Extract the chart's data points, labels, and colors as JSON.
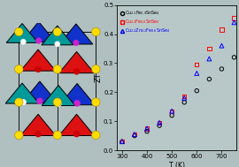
{
  "bg_color": "#b0bfbf",
  "plot_bg_color": "#b8c8c8",
  "series": [
    {
      "color": "black",
      "marker": "o",
      "T": [
        300,
        350,
        400,
        450,
        500,
        550,
        600,
        650,
        700,
        750
      ],
      "ZT": [
        0.03,
        0.05,
        0.065,
        0.085,
        0.12,
        0.165,
        0.205,
        0.245,
        0.28,
        0.32
      ]
    },
    {
      "color": "red",
      "marker": "s",
      "T": [
        300,
        350,
        400,
        450,
        500,
        550,
        600,
        650,
        700,
        750
      ],
      "ZT": [
        0.03,
        0.055,
        0.075,
        0.095,
        0.135,
        0.185,
        0.295,
        0.35,
        0.415,
        0.455
      ]
    },
    {
      "color": "blue",
      "marker": "^",
      "T": [
        300,
        350,
        400,
        450,
        500,
        550,
        600,
        650,
        700,
        750
      ],
      "ZT": [
        0.03,
        0.055,
        0.075,
        0.095,
        0.135,
        0.18,
        0.265,
        0.315,
        0.36,
        0.44
      ]
    }
  ],
  "xlabel": "T (K)",
  "ylabel": "ZT",
  "xlim": [
    280,
    760
  ],
  "ylim": [
    0.0,
    0.5
  ],
  "xticks": [
    300,
    400,
    500,
    600,
    700
  ],
  "yticks": [
    0.0,
    0.1,
    0.2,
    0.3,
    0.4,
    0.5
  ]
}
